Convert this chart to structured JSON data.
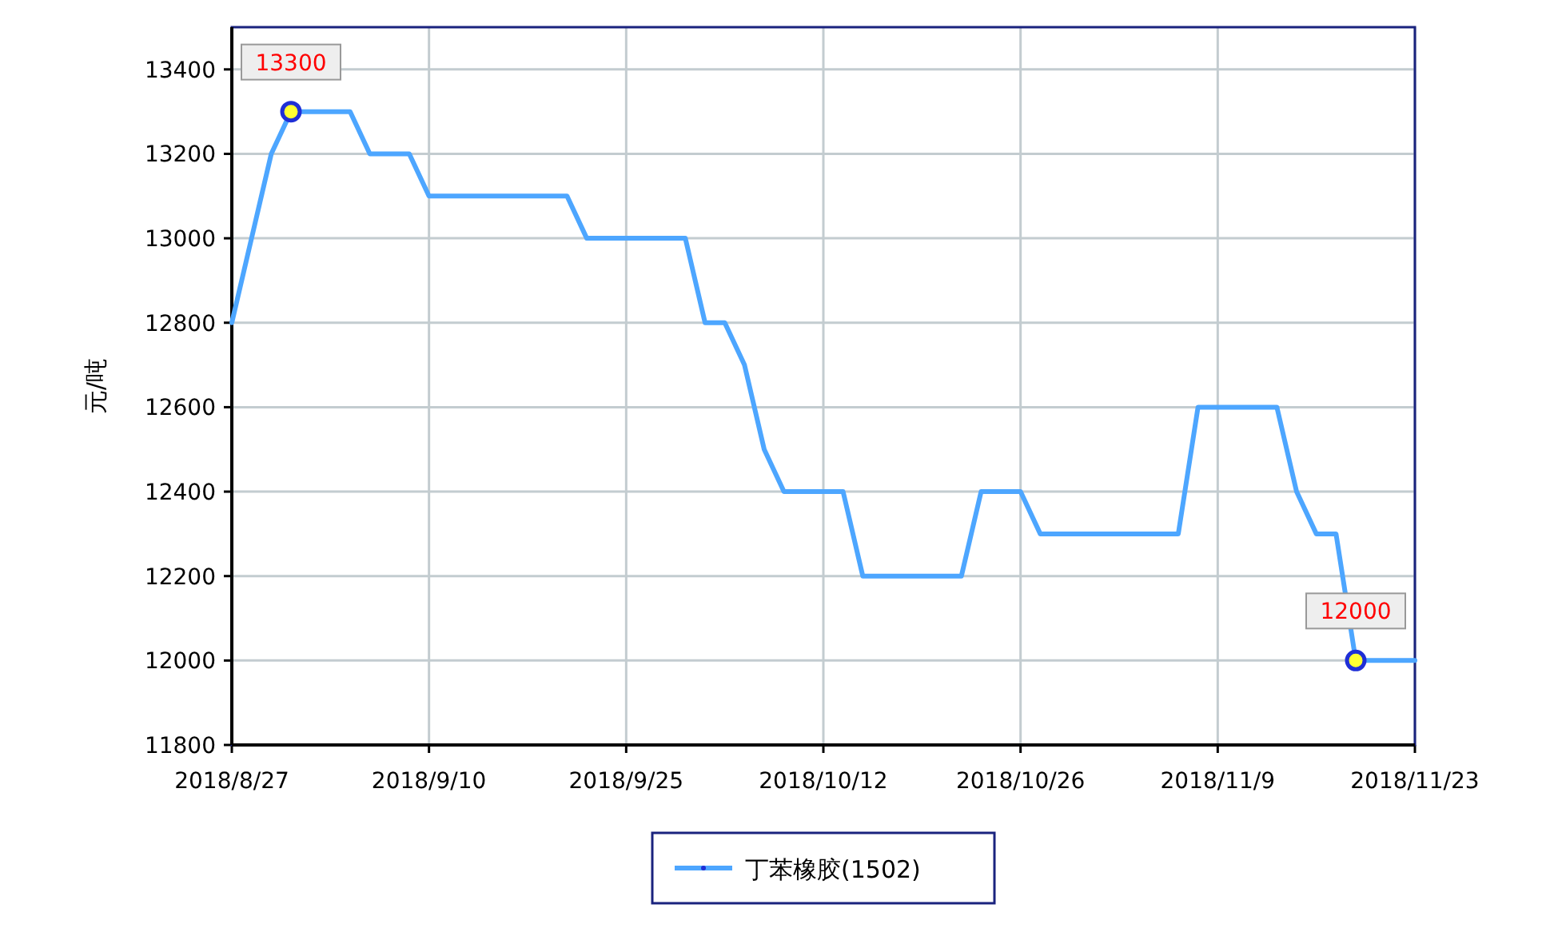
{
  "chart_data": {
    "type": "line",
    "ylabel": "元/吨",
    "categories": [
      "2018/8/27",
      null,
      null,
      null,
      null,
      null,
      null,
      null,
      null,
      null,
      "2018/9/10",
      null,
      null,
      null,
      null,
      null,
      null,
      null,
      null,
      null,
      "2018/9/25",
      null,
      null,
      null,
      null,
      null,
      null,
      null,
      null,
      null,
      "2018/10/12",
      null,
      null,
      null,
      null,
      null,
      null,
      null,
      null,
      null,
      "2018/10/26",
      null,
      null,
      null,
      null,
      null,
      null,
      null,
      null,
      null,
      "2018/11/9",
      null,
      null,
      null,
      null,
      null,
      null,
      null,
      null,
      null,
      "2018/11/23"
    ],
    "series": [
      {
        "name": "丁苯橡胶(1502)",
        "color": "#4da6ff",
        "values": [
          12800,
          13000,
          13200,
          13300,
          13300,
          13300,
          13300,
          13200,
          13200,
          13200,
          13100,
          13100,
          13100,
          13100,
          13100,
          13100,
          13100,
          13100,
          13000,
          13000,
          13000,
          13000,
          13000,
          13000,
          12800,
          12800,
          12700,
          12500,
          12400,
          12400,
          12400,
          12400,
          12200,
          12200,
          12200,
          12200,
          12200,
          12200,
          12400,
          12400,
          12400,
          12300,
          12300,
          12300,
          12300,
          12300,
          12300,
          12300,
          12300,
          12600,
          12600,
          12600,
          12600,
          12600,
          12400,
          12300,
          12300,
          12000,
          12000,
          12000,
          12000
        ],
        "value_labels": [
          null,
          null,
          null,
          "13300",
          null,
          null,
          null,
          null,
          null,
          null,
          null,
          null,
          null,
          null,
          null,
          null,
          null,
          null,
          null,
          null,
          null,
          null,
          null,
          null,
          null,
          null,
          null,
          null,
          null,
          null,
          null,
          null,
          null,
          null,
          null,
          null,
          null,
          null,
          null,
          null,
          null,
          null,
          null,
          null,
          null,
          null,
          null,
          null,
          null,
          null,
          null,
          null,
          null,
          null,
          null,
          null,
          null,
          "12000",
          null,
          null,
          null
        ]
      }
    ],
    "ylim": [
      11800,
      13500
    ],
    "yticks": [
      11800,
      12000,
      12200,
      12400,
      12600,
      12800,
      13000,
      13200,
      13400
    ],
    "grid": true,
    "legend": "bottom",
    "marker": "none",
    "line_style": "solid"
  }
}
